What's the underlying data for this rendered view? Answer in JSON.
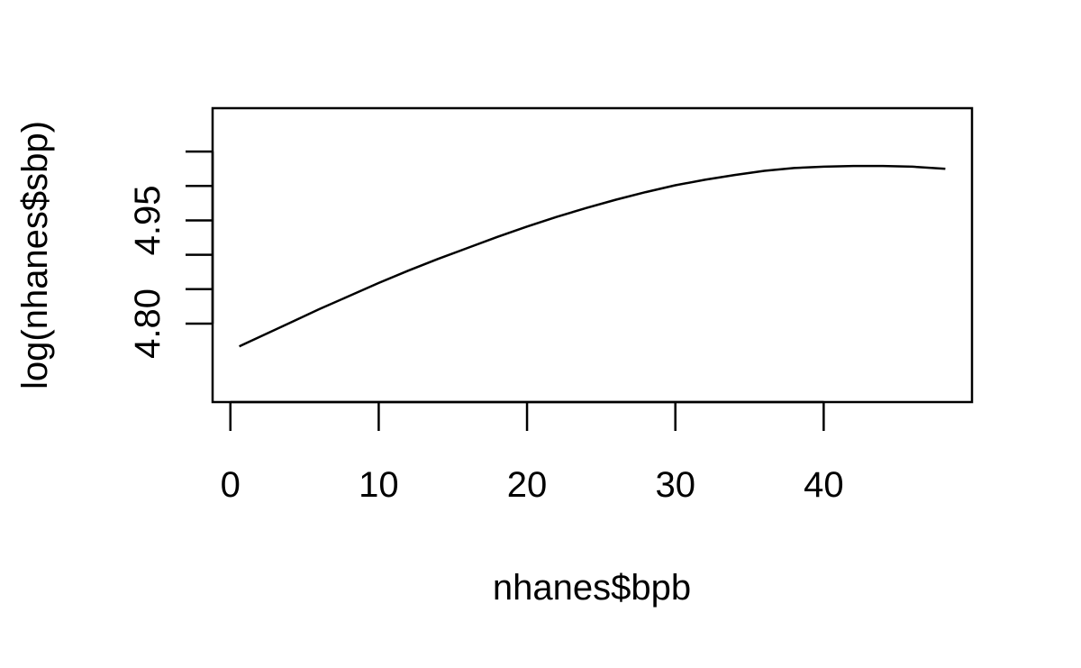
{
  "chart_data": {
    "type": "line",
    "xlabel": "nhanes$bpb",
    "ylabel": "log(nhanes$sbp)",
    "xlim": [
      -1.2,
      50
    ],
    "ylim": [
      4.686,
      5.113
    ],
    "x_ticks": [
      0,
      10,
      20,
      30,
      40
    ],
    "x_tick_labels": [
      "0",
      "10",
      "20",
      "30",
      "40"
    ],
    "y_ticks": [
      4.8,
      4.85,
      4.9,
      4.95,
      5.0,
      5.05
    ],
    "y_tick_labels": [
      "4.80",
      "",
      "",
      "4.95",
      "",
      ""
    ],
    "grid": false,
    "series": [
      {
        "x": [
          0.6,
          2,
          4,
          6,
          8,
          10,
          12,
          14,
          16,
          18,
          20,
          22,
          24,
          26,
          28,
          30,
          32,
          34,
          36,
          38,
          40,
          42,
          44,
          46,
          48.2
        ],
        "y": [
          4.767,
          4.781,
          4.801,
          4.821,
          4.84,
          4.859,
          4.877,
          4.894,
          4.91,
          4.926,
          4.941,
          4.955,
          4.968,
          4.98,
          4.991,
          5.001,
          5.009,
          5.016,
          5.022,
          5.026,
          5.028,
          5.029,
          5.029,
          5.028,
          5.025
        ]
      }
    ]
  }
}
